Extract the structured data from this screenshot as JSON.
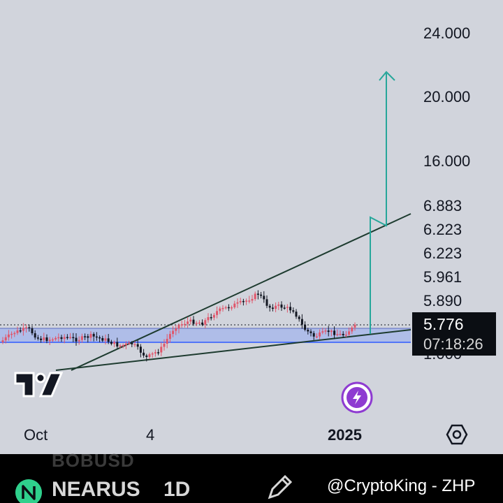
{
  "chart_data": {
    "type": "candlestick",
    "title": "",
    "price_axis_labels": [
      "24.000",
      "20.000",
      "16.000",
      "6.883",
      "6.223",
      "6.223",
      "5.961",
      "5.890",
      "1.000"
    ],
    "time_axis_labels": [
      "Oct",
      "4",
      "2025"
    ],
    "current_price": "5.776",
    "countdown": "07:18:26",
    "approx_price_points": [
      {
        "t": "Oct",
        "price": 4.9
      },
      {
        "t": "mid-Oct",
        "price": 4.85
      },
      {
        "t": "early Nov",
        "price": 4.5
      },
      {
        "t": "4",
        "price": 4.4
      },
      {
        "t": "mid-Nov",
        "price": 5.3
      },
      {
        "t": "late Nov",
        "price": 5.8
      },
      {
        "t": "early Dec",
        "price": 6.2
      },
      {
        "t": "mid Dec",
        "price": 5.9
      },
      {
        "t": "late Dec",
        "price": 4.8
      },
      {
        "t": "2025",
        "price": 5.776
      }
    ],
    "grid": false
  },
  "symbol": "NEARUS",
  "ghost_symbol": "BOBUSD",
  "interval": "1D",
  "watermark": "@CryptoKing - ZHP",
  "colors": {
    "background": "#d1d4dc",
    "up_candle": "#e0566b",
    "down_candle": "#131722",
    "zone_fill": "#a9b8ea",
    "zone_line": "#2e5bff",
    "trendline": "#1d3b2f",
    "target_arrow": "#26a69a",
    "bolt_badge": "#8e3bd1",
    "near_logo": "#2fd08c"
  },
  "icons": [
    "tradingview-logo",
    "lightning-bolt-icon",
    "settings-hexagon-icon",
    "pencil-icon",
    "near-logo",
    "indicators-icon"
  ]
}
